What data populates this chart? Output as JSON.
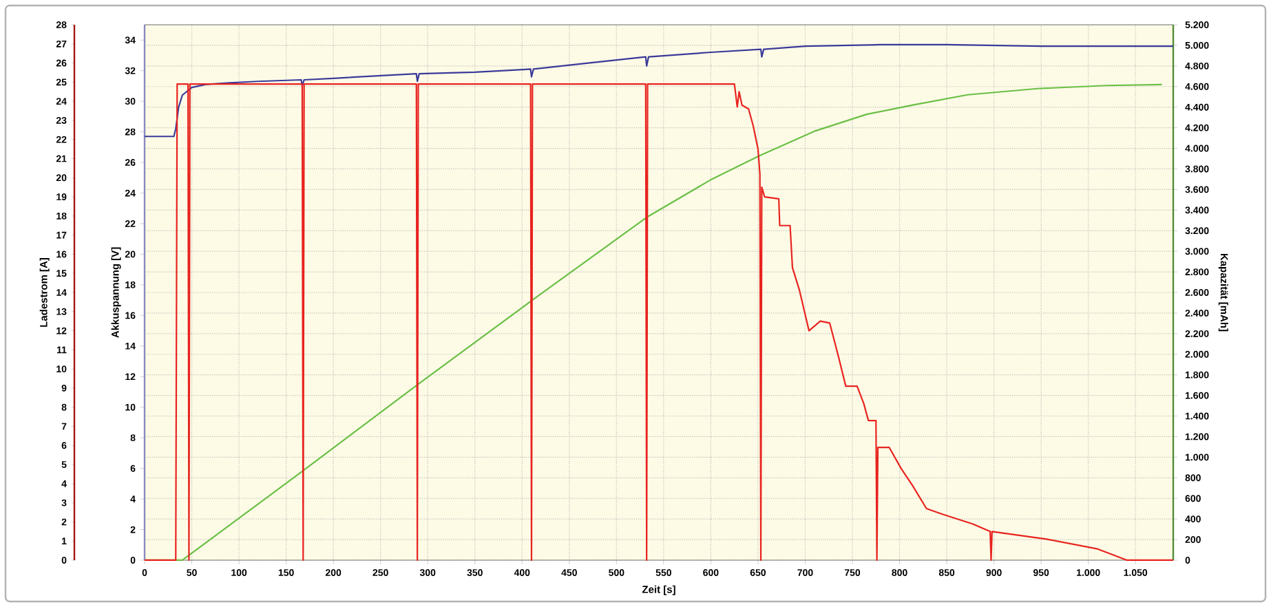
{
  "chart_data": {
    "type": "line",
    "xlabel": "Zeit [s]",
    "ylabel": "Akkuspannung [V]",
    "y2label": "Kapazität [mAh]",
    "y3label": "Ladestrom [A]",
    "xlim": [
      0,
      1090
    ],
    "xticks": [
      0,
      50,
      100,
      150,
      200,
      250,
      300,
      350,
      400,
      450,
      500,
      550,
      600,
      650,
      700,
      750,
      800,
      850,
      900,
      950,
      {
        "value": 1000,
        "label": "1.000"
      },
      {
        "value": 1050,
        "label": "1.050"
      }
    ],
    "ylim": [
      0,
      35
    ],
    "yticks": [
      0,
      2,
      4,
      6,
      8,
      10,
      12,
      14,
      16,
      18,
      20,
      22,
      24,
      26,
      28,
      30,
      32,
      34
    ],
    "y2lim": [
      0,
      5200
    ],
    "y2ticks": [
      0,
      200,
      400,
      600,
      800,
      {
        "value": 1000,
        "label": "1.000"
      },
      {
        "value": 1200,
        "label": "1.200"
      },
      {
        "value": 1400,
        "label": "1.400"
      },
      {
        "value": 1600,
        "label": "1.600"
      },
      {
        "value": 1800,
        "label": "1.800"
      },
      {
        "value": 2000,
        "label": "2.000"
      },
      {
        "value": 2200,
        "label": "2.200"
      },
      {
        "value": 2400,
        "label": "2.400"
      },
      {
        "value": 2600,
        "label": "2.600"
      },
      {
        "value": 2800,
        "label": "2.800"
      },
      {
        "value": 3000,
        "label": "3.000"
      },
      {
        "value": 3200,
        "label": "3.200"
      },
      {
        "value": 3400,
        "label": "3.400"
      },
      {
        "value": 3600,
        "label": "3.600"
      },
      {
        "value": 3800,
        "label": "3.800"
      },
      {
        "value": 4000,
        "label": "4.000"
      },
      {
        "value": 4200,
        "label": "4.200"
      },
      {
        "value": 4400,
        "label": "4.400"
      },
      {
        "value": 4600,
        "label": "4.600"
      },
      {
        "value": 4800,
        "label": "4.800"
      },
      {
        "value": 5000,
        "label": "5.000"
      },
      {
        "value": 5200,
        "label": "5.200"
      }
    ],
    "y3lim": [
      0,
      28
    ],
    "y3ticks": [
      0,
      1,
      2,
      3,
      4,
      5,
      6,
      7,
      8,
      9,
      10,
      11,
      12,
      13,
      14,
      15,
      16,
      17,
      18,
      19,
      20,
      21,
      22,
      23,
      24,
      25,
      26,
      27,
      28
    ],
    "grid": true,
    "series": [
      {
        "color": "#6abf45",
        "axis": "y2",
        "x": [
          0,
          40,
          168,
          290,
          410,
          532,
          601,
          652,
          711,
          765,
          814,
          872,
          946,
          1019,
          1078
        ],
        "values": [
          0,
          0,
          870,
          1710,
          2520,
          3330,
          3700,
          3930,
          4170,
          4330,
          4420,
          4520,
          4580,
          4610,
          4620
        ]
      },
      {
        "color": "#3a3a9a",
        "axis": "y",
        "x": [
          0,
          31,
          33,
          36,
          40,
          50,
          65,
          90,
          120,
          166,
          167,
          169,
          200,
          288,
          289,
          291,
          350,
          409,
          410,
          412,
          470,
          531,
          532,
          534,
          600,
          653,
          654,
          656,
          700,
          780,
          850,
          950,
          1050,
          1090
        ],
        "values": [
          27.7,
          27.7,
          28.2,
          29.6,
          30.4,
          30.9,
          31.1,
          31.2,
          31.3,
          31.4,
          31.0,
          31.4,
          31.5,
          31.8,
          31.3,
          31.8,
          31.9,
          32.1,
          31.6,
          32.1,
          32.5,
          32.9,
          32.3,
          32.9,
          33.2,
          33.4,
          32.9,
          33.4,
          33.6,
          33.7,
          33.7,
          33.6,
          33.6,
          33.6
        ]
      },
      {
        "color": "#e8231f",
        "axis": "y3",
        "x": [
          0,
          33,
          34.5,
          46,
          47,
          48,
          167,
          168,
          169,
          288,
          289,
          290,
          409,
          410,
          411,
          531,
          532,
          533,
          625,
          628,
          630,
          633,
          640,
          645,
          650,
          652,
          653,
          654,
          657,
          672,
          673,
          684,
          686.5,
          694,
          704,
          716,
          726,
          735.5,
          743,
          755,
          762,
          767,
          775,
          776,
          777,
          789,
          801.6,
          813.8,
          828.5,
          845.6,
          877.3,
          896,
          897,
          898,
          955.7,
          1009,
          1041,
          1090
        ],
        "values": [
          0,
          0,
          24.9,
          24.9,
          0,
          24.9,
          24.9,
          0,
          24.9,
          24.9,
          0,
          24.9,
          24.9,
          0,
          24.9,
          24.9,
          0,
          24.9,
          24.9,
          23.7,
          24.5,
          23.8,
          23.6,
          22.7,
          21.5,
          20.2,
          0,
          19.5,
          19.0,
          18.9,
          17.5,
          17.5,
          15.3,
          14.1,
          12.0,
          12.5,
          12.4,
          10.6,
          9.1,
          9.1,
          8.2,
          7.3,
          7.3,
          0,
          5.9,
          5.9,
          4.8,
          3.9,
          2.7,
          2.4,
          1.9,
          1.5,
          0,
          1.5,
          1.1,
          0.6,
          0,
          0
        ]
      }
    ]
  }
}
